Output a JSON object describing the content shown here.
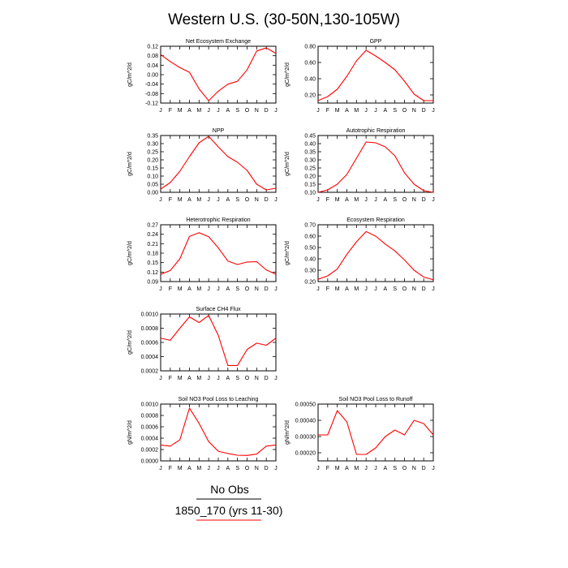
{
  "title": "Western U.S. (30-50N,130-105W)",
  "legend": {
    "model_label": "No Obs",
    "case_label": "1850_170 (yrs 11-30)",
    "obs_color": "#000000",
    "model_color": "#ff0000"
  },
  "series_color": "#ff0000",
  "months": [
    "J",
    "F",
    "M",
    "A",
    "M",
    "J",
    "J",
    "A",
    "S",
    "O",
    "N",
    "D",
    "J"
  ],
  "chart_data": [
    {
      "type": "line",
      "title": "Net Ecosystem Exchange",
      "ylabel": "gC/m^2/d",
      "ylim": [
        -0.12,
        0.12
      ],
      "yticks": [
        -0.12,
        -0.08,
        -0.04,
        0.0,
        0.04,
        0.08,
        0.12
      ],
      "ytick_labels": [
        "-0.12",
        "-0.08",
        "-0.04",
        "0.00",
        "0.04",
        "0.08",
        "0.12"
      ],
      "categories": [
        "J",
        "F",
        "M",
        "A",
        "M",
        "J",
        "J",
        "A",
        "S",
        "O",
        "N",
        "D",
        "J"
      ],
      "values": [
        0.085,
        0.055,
        0.03,
        0.01,
        -0.06,
        -0.11,
        -0.07,
        -0.04,
        -0.028,
        0.02,
        0.1,
        0.113,
        0.09
      ]
    },
    {
      "type": "line",
      "title": "GPP",
      "ylabel": "gC/m^2/d",
      "ylim": [
        0.1,
        0.8
      ],
      "yticks": [
        0.2,
        0.4,
        0.6,
        0.8
      ],
      "ytick_labels": [
        "0.20",
        "0.40",
        "0.60",
        "0.80"
      ],
      "categories": [
        "J",
        "F",
        "M",
        "A",
        "M",
        "J",
        "J",
        "A",
        "S",
        "O",
        "N",
        "D",
        "J"
      ],
      "values": [
        0.13,
        0.18,
        0.27,
        0.43,
        0.62,
        0.75,
        0.68,
        0.6,
        0.51,
        0.37,
        0.21,
        0.13,
        0.13
      ]
    },
    {
      "type": "line",
      "title": "NPP",
      "ylabel": "gC/m^2/d",
      "ylim": [
        0.0,
        0.35
      ],
      "yticks": [
        0.0,
        0.05,
        0.1,
        0.15,
        0.2,
        0.25,
        0.3,
        0.35
      ],
      "ytick_labels": [
        "0.00",
        "0.05",
        "0.10",
        "0.15",
        "0.20",
        "0.25",
        "0.30",
        "0.35"
      ],
      "categories": [
        "J",
        "F",
        "M",
        "A",
        "M",
        "J",
        "J",
        "A",
        "S",
        "O",
        "N",
        "D",
        "J"
      ],
      "values": [
        0.02,
        0.06,
        0.13,
        0.22,
        0.305,
        0.345,
        0.28,
        0.22,
        0.185,
        0.135,
        0.05,
        0.015,
        0.025
      ]
    },
    {
      "type": "line",
      "title": "Autotrophic Respiration",
      "ylabel": "gC/m^2/d",
      "ylim": [
        0.1,
        0.45
      ],
      "yticks": [
        0.1,
        0.15,
        0.2,
        0.25,
        0.3,
        0.35,
        0.4,
        0.45
      ],
      "ytick_labels": [
        "0.10",
        "0.15",
        "0.20",
        "0.25",
        "0.30",
        "0.35",
        "0.40",
        "0.45"
      ],
      "categories": [
        "J",
        "F",
        "M",
        "A",
        "M",
        "J",
        "J",
        "A",
        "S",
        "O",
        "N",
        "D",
        "J"
      ],
      "values": [
        0.1,
        0.115,
        0.15,
        0.21,
        0.31,
        0.41,
        0.405,
        0.38,
        0.325,
        0.22,
        0.15,
        0.11,
        0.1
      ]
    },
    {
      "type": "line",
      "title": "Heterotrophic Respiration",
      "ylabel": "gC/m^2/d",
      "ylim": [
        0.09,
        0.27
      ],
      "yticks": [
        0.09,
        0.12,
        0.15,
        0.18,
        0.21,
        0.24,
        0.27
      ],
      "ytick_labels": [
        "0.09",
        "0.12",
        "0.15",
        "0.18",
        "0.21",
        "0.24",
        "0.27"
      ],
      "categories": [
        "J",
        "F",
        "M",
        "A",
        "M",
        "J",
        "J",
        "A",
        "S",
        "O",
        "N",
        "D",
        "J"
      ],
      "values": [
        0.113,
        0.125,
        0.162,
        0.233,
        0.245,
        0.232,
        0.197,
        0.155,
        0.144,
        0.152,
        0.153,
        0.127,
        0.113
      ]
    },
    {
      "type": "line",
      "title": "Ecosystem Respiration",
      "ylabel": "gC/m^2/d",
      "ylim": [
        0.2,
        0.7
      ],
      "yticks": [
        0.2,
        0.3,
        0.4,
        0.5,
        0.6,
        0.7
      ],
      "ytick_labels": [
        "0.20",
        "0.30",
        "0.40",
        "0.50",
        "0.60",
        "0.70"
      ],
      "categories": [
        "J",
        "F",
        "M",
        "A",
        "M",
        "J",
        "J",
        "A",
        "S",
        "O",
        "N",
        "D",
        "J"
      ],
      "values": [
        0.22,
        0.25,
        0.31,
        0.44,
        0.55,
        0.64,
        0.6,
        0.53,
        0.47,
        0.39,
        0.3,
        0.24,
        0.215
      ]
    },
    {
      "type": "line",
      "title": "Surface CH4 Flux",
      "ylabel": "gC/m^2/d",
      "ylim": [
        0.0002,
        0.001
      ],
      "yticks": [
        0.0002,
        0.0004,
        0.0006,
        0.0008,
        0.001
      ],
      "ytick_labels": [
        "0.0002",
        "0.0004",
        "0.0006",
        "0.0008",
        "0.0010"
      ],
      "categories": [
        "J",
        "F",
        "M",
        "A",
        "M",
        "J",
        "J",
        "A",
        "S",
        "O",
        "N",
        "D",
        "J"
      ],
      "values": [
        0.00066,
        0.00063,
        0.0008,
        0.00096,
        0.00088,
        0.00098,
        0.0007,
        0.000275,
        0.000275,
        0.0005,
        0.00059,
        0.00056,
        0.00066
      ]
    },
    {
      "type": "line",
      "title": "Soil NO3 Pool Loss to Leaching",
      "ylabel": "gN/m^2/d",
      "ylim": [
        0.0,
        0.001
      ],
      "yticks": [
        0.0,
        0.0002,
        0.0004,
        0.0006,
        0.0008,
        0.001
      ],
      "ytick_labels": [
        "0.0000",
        "0.0002",
        "0.0004",
        "0.0006",
        "0.0008",
        "0.0010"
      ],
      "categories": [
        "J",
        "F",
        "M",
        "A",
        "M",
        "J",
        "J",
        "A",
        "S",
        "O",
        "N",
        "D",
        "J"
      ],
      "values": [
        0.00028,
        0.00026,
        0.00037,
        0.00093,
        0.00066,
        0.00034,
        0.00017,
        0.00013,
        0.0001,
        9.5e-05,
        0.00012,
        0.00026,
        0.00028
      ]
    },
    {
      "type": "line",
      "title": "Soil NO3 Pool Loss to Runoff",
      "ylabel": "gN/m^2/d",
      "ylim": [
        0.00015,
        0.0005
      ],
      "yticks": [
        0.0002,
        0.0003,
        0.0004,
        0.0005
      ],
      "ytick_labels": [
        "0.00020",
        "0.00030",
        "0.00040",
        "0.00050"
      ],
      "categories": [
        "J",
        "F",
        "M",
        "A",
        "M",
        "J",
        "J",
        "A",
        "S",
        "O",
        "N",
        "D",
        "J"
      ],
      "values": [
        0.00031,
        0.00031,
        0.00046,
        0.00039,
        0.00019,
        0.00019,
        0.00023,
        0.0003,
        0.00034,
        0.00031,
        0.0004,
        0.00038,
        0.00031
      ]
    }
  ]
}
